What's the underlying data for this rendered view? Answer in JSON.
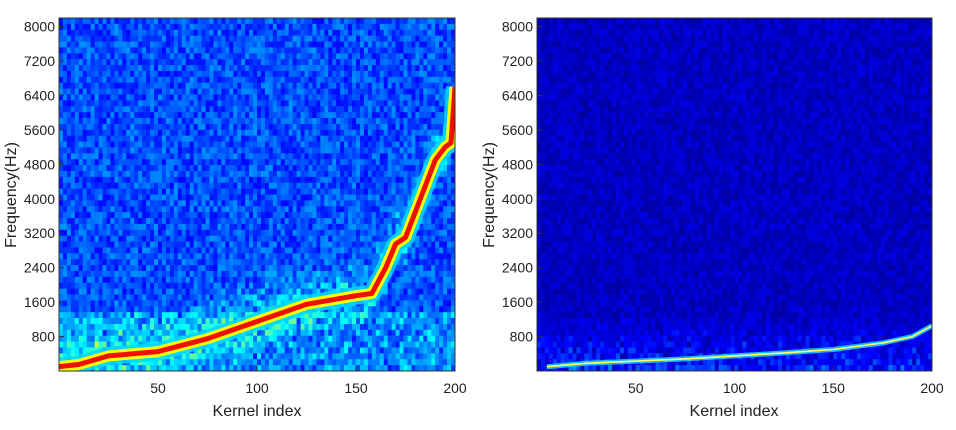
{
  "chart_data": [
    {
      "type": "heatmap",
      "panel": "left",
      "xlabel": "Kernel index",
      "ylabel": "Frequency(Hz)",
      "xlim": [
        0,
        200
      ],
      "ylim": [
        0,
        8200
      ],
      "xticks": [
        50,
        100,
        150,
        200
      ],
      "yticks": [
        800,
        1600,
        2400,
        3200,
        4000,
        4800,
        5600,
        6400,
        7200,
        8000
      ],
      "colormap": "jet",
      "background_level": 0.2,
      "ridge": {
        "kernel_index": [
          0,
          10,
          25,
          50,
          75,
          100,
          125,
          150,
          158,
          165,
          170,
          175,
          180,
          185,
          190,
          195,
          198,
          200
        ],
        "frequency_hz": [
          100,
          150,
          350,
          450,
          750,
          1150,
          1550,
          1750,
          1800,
          2400,
          2950,
          3100,
          3700,
          4300,
          4900,
          5200,
          5300,
          6600
        ]
      },
      "grid": false
    },
    {
      "type": "heatmap",
      "panel": "right",
      "xlabel": "Kernel index",
      "ylabel": "Frequency(Hz)",
      "xlim": [
        0,
        200
      ],
      "ylim": [
        0,
        8200
      ],
      "xticks": [
        50,
        100,
        150,
        200
      ],
      "yticks": [
        800,
        1600,
        2400,
        3200,
        4000,
        4800,
        5600,
        6400,
        7200,
        8000
      ],
      "colormap": "jet",
      "background_level": 0.05,
      "ridge": {
        "kernel_index": [
          5,
          25,
          50,
          75,
          100,
          125,
          150,
          175,
          190,
          200
        ],
        "frequency_hz": [
          100,
          180,
          230,
          280,
          350,
          420,
          500,
          650,
          800,
          1050
        ]
      },
      "grid": false
    }
  ]
}
